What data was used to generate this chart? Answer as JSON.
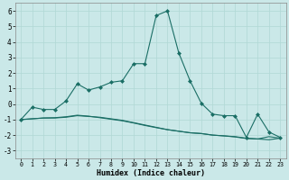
{
  "xlabel": "Humidex (Indice chaleur)",
  "background_color": "#cae8e8",
  "grid_color": "#b0d8d5",
  "line_color": "#1a6e65",
  "xlim": [
    -0.5,
    23.5
  ],
  "ylim": [
    -3.5,
    6.5
  ],
  "yticks": [
    -3,
    -2,
    -1,
    0,
    1,
    2,
    3,
    4,
    5,
    6
  ],
  "xticks": [
    0,
    1,
    2,
    3,
    4,
    5,
    6,
    7,
    8,
    9,
    10,
    11,
    12,
    13,
    14,
    15,
    16,
    17,
    18,
    19,
    20,
    21,
    22,
    23
  ],
  "line1_x": [
    0,
    1,
    2,
    3,
    4,
    5,
    6,
    7,
    8,
    9,
    10,
    11,
    12,
    13,
    14,
    15,
    16,
    17,
    18,
    19,
    20,
    21,
    22,
    23
  ],
  "line1_y": [
    -1.0,
    -0.2,
    -0.35,
    -0.35,
    0.2,
    1.3,
    0.9,
    1.1,
    1.4,
    1.5,
    2.6,
    2.6,
    5.7,
    6.0,
    3.3,
    1.5,
    0.05,
    -0.65,
    -0.75,
    -0.75,
    -2.15,
    -0.65,
    -1.8,
    -2.15
  ],
  "line2_x": [
    0,
    1,
    2,
    3,
    4,
    5,
    6,
    7,
    8,
    9,
    10,
    11,
    12,
    13,
    14,
    15,
    16,
    17,
    18,
    19,
    20,
    21,
    22,
    23
  ],
  "line2_y": [
    -1.0,
    -0.95,
    -0.9,
    -0.9,
    -0.85,
    -0.75,
    -0.8,
    -0.85,
    -0.95,
    -1.05,
    -1.2,
    -1.35,
    -1.5,
    -1.65,
    -1.75,
    -1.85,
    -1.9,
    -2.0,
    -2.05,
    -2.1,
    -2.2,
    -2.25,
    -2.3,
    -2.2
  ],
  "line3_x": [
    0,
    1,
    2,
    3,
    4,
    5,
    6,
    7,
    8,
    9,
    10,
    11,
    12,
    13,
    14,
    15,
    16,
    17,
    18,
    19,
    20,
    21,
    22,
    23
  ],
  "line3_y": [
    -1.0,
    -0.95,
    -0.9,
    -0.88,
    -0.82,
    -0.72,
    -0.78,
    -0.88,
    -0.98,
    -1.08,
    -1.22,
    -1.38,
    -1.52,
    -1.65,
    -1.75,
    -1.85,
    -1.9,
    -2.0,
    -2.05,
    -2.12,
    -2.22,
    -2.25,
    -2.1,
    -2.2
  ]
}
